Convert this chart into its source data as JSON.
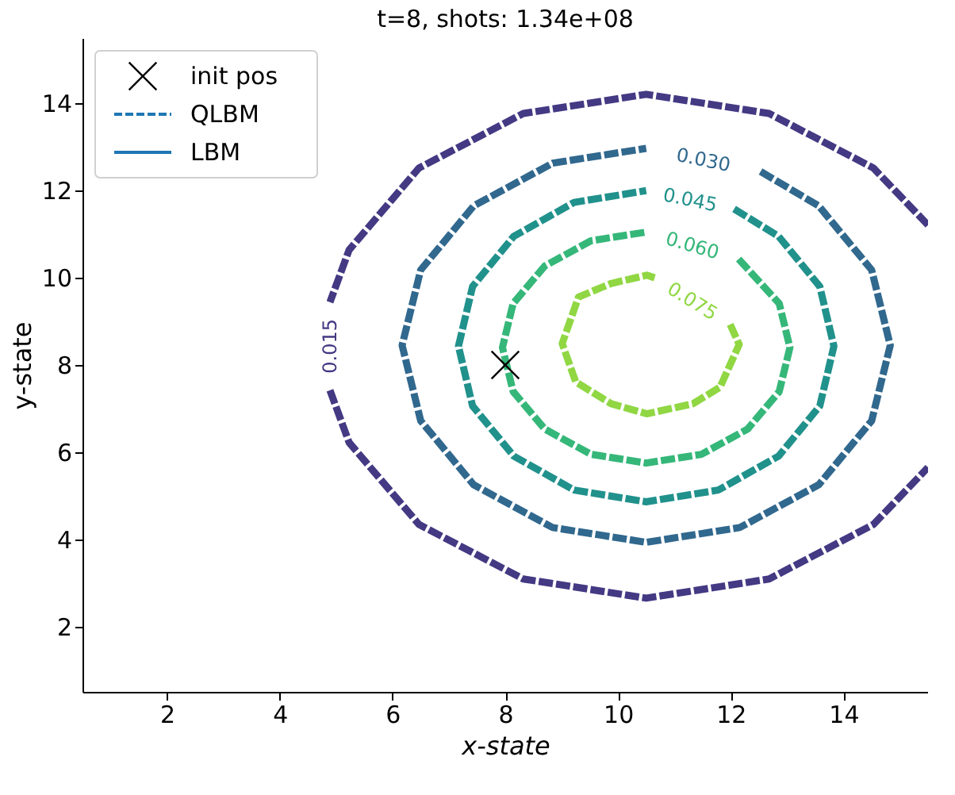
{
  "chart_data": {
    "type": "line",
    "title": "t=8, shots: 1.34e+08",
    "xlabel": "x-state",
    "ylabel": "y-state",
    "xlim": [
      0.5,
      15.5
    ],
    "ylim": [
      0.5,
      15.5
    ],
    "xticks": [
      2,
      4,
      6,
      8,
      10,
      12,
      14
    ],
    "yticks": [
      2,
      4,
      6,
      8,
      10,
      12,
      14
    ],
    "grid": false,
    "legend": "top left",
    "marker": "none",
    "series": [
      {
        "name": "0.015",
        "color": "#443983",
        "line_style": "dashed",
        "x": [
          4.89,
          5.23,
          6.47,
          8.32,
          10.5,
          12.68,
          14.53,
          15.5,
          null,
          15.5,
          14.53,
          12.68,
          10.5,
          8.32,
          6.47,
          5.23,
          4.89
        ],
        "values": [
          7.42,
          6.22,
          4.34,
          3.09,
          2.65,
          3.09,
          4.34,
          5.65,
          null,
          11.21,
          12.52,
          13.77,
          14.21,
          13.77,
          12.52,
          10.64,
          9.44
        ]
      },
      {
        "name": "0.030",
        "color": "#31688e",
        "line_style": "dashed",
        "x": [
          12.53,
          13.56,
          14.5,
          14.83,
          14.5,
          13.56,
          12.16,
          10.5,
          8.84,
          7.44,
          6.5,
          6.17,
          6.5,
          7.44,
          8.84,
          10.5
        ],
        "values": [
          12.44,
          11.65,
          10.18,
          8.45,
          6.72,
          5.25,
          4.27,
          3.93,
          4.27,
          5.25,
          6.72,
          8.45,
          10.18,
          11.65,
          12.63,
          12.97
        ]
      },
      {
        "name": "0.045",
        "color": "#21918c",
        "line_style": "dashed",
        "x": [
          12.06,
          12.85,
          13.58,
          13.83,
          13.58,
          12.85,
          11.78,
          10.5,
          9.22,
          8.15,
          7.42,
          7.17,
          7.42,
          8.15,
          9.22,
          10.5
        ],
        "values": [
          11.58,
          10.95,
          9.8,
          8.43,
          7.06,
          5.91,
          5.13,
          4.86,
          5.13,
          5.91,
          7.06,
          8.43,
          9.8,
          10.95,
          11.73,
          12.0
        ]
      },
      {
        "name": "0.060",
        "color": "#35b779",
        "line_style": "dashed",
        "x": [
          12.14,
          12.86,
          13.05,
          12.86,
          12.3,
          11.48,
          10.5,
          9.52,
          8.7,
          8.14,
          7.95,
          8.14,
          8.7,
          9.52,
          10.5
        ],
        "values": [
          10.43,
          9.41,
          8.4,
          7.39,
          6.53,
          5.95,
          5.75,
          5.95,
          6.53,
          7.39,
          8.4,
          9.41,
          10.27,
          10.85,
          11.05
        ]
      },
      {
        "name": "0.075",
        "color": "#90d743",
        "line_style": "dashed",
        "x": [
          11.99,
          12.15,
          11.81,
          11.33,
          10.51,
          9.88,
          9.25,
          9.01,
          9.3,
          9.88,
          10.51,
          10.65
        ],
        "values": [
          8.93,
          8.47,
          7.49,
          7.11,
          6.88,
          7.11,
          7.61,
          8.49,
          9.56,
          9.87,
          10.06,
          10.0
        ]
      },
      {
        "type": "scatter",
        "name": "init pos",
        "color": "#000000",
        "marker": "cross",
        "x": [
          8
        ],
        "values": [
          8
        ]
      }
    ],
    "annotations": [
      "QLBM",
      "LBM"
    ]
  }
}
